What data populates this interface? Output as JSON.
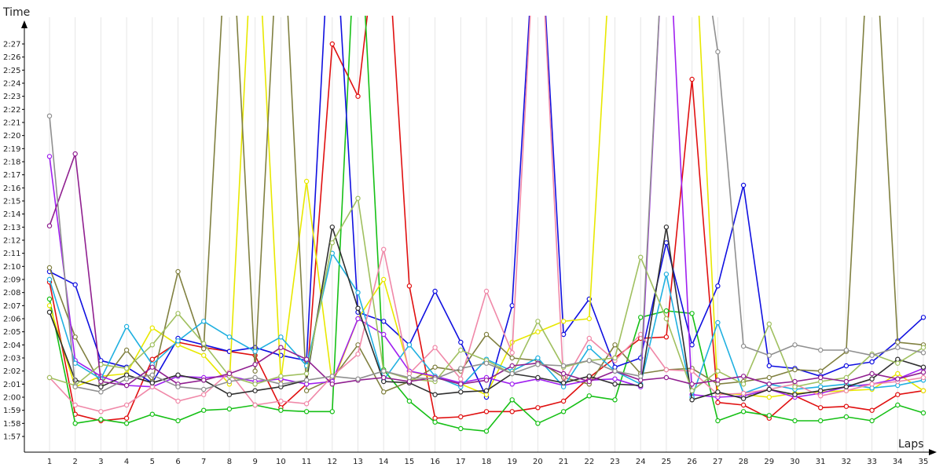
{
  "chart_data": {
    "type": "line",
    "xlabel": "Laps",
    "ylabel": "Time",
    "xlim": [
      1,
      35
    ],
    "ylim": [
      "1:57",
      "2:27"
    ],
    "x_ticks": [
      "1",
      "2",
      "3",
      "4",
      "5",
      "6",
      "7",
      "8",
      "9",
      "10",
      "11",
      "12",
      "13",
      "14",
      "15",
      "16",
      "17",
      "18",
      "19",
      "20",
      "21",
      "22",
      "23",
      "24",
      "25",
      "26",
      "27",
      "28",
      "29",
      "30",
      "31",
      "32",
      "33",
      "34",
      "35"
    ],
    "y_ticks": [
      "1:57",
      "1:58",
      "1:59",
      "2:00",
      "2:01",
      "2:02",
      "2:03",
      "2:04",
      "2:05",
      "2:06",
      "2:07",
      "2:08",
      "2:09",
      "2:10",
      "2:11",
      "2:12",
      "2:13",
      "2:14",
      "2:15",
      "2:16",
      "2:17",
      "2:18",
      "2:19",
      "2:20",
      "2:21",
      "2:22",
      "2:23",
      "2:24",
      "2:25",
      "2:26",
      "2:27"
    ],
    "grid": "vertical",
    "legend": "none",
    "series": [
      {
        "color": "#e01010",
        "values": [
          128.8,
          118.7,
          118.2,
          118.4,
          122.9,
          124.2,
          123.8,
          123.5,
          123.2,
          119.2,
          121.0,
          147.0,
          143.0,
          160.0,
          128.5,
          118.4,
          118.5,
          118.9,
          118.9,
          119.2,
          119.7,
          121.5,
          123.0,
          124.5,
          124.6,
          144.3,
          119.6,
          119.4,
          118.4,
          120.1,
          119.2,
          119.3,
          119.0,
          120.2,
          120.5
        ]
      },
      {
        "color": "#16c016",
        "values": [
          127.5,
          118.0,
          118.3,
          118.0,
          118.7,
          118.2,
          119.0,
          119.1,
          119.4,
          119.0,
          118.9,
          118.9,
          160.0,
          122.1,
          119.7,
          118.1,
          117.6,
          117.4,
          119.8,
          118.0,
          118.9,
          120.1,
          119.8,
          126.1,
          126.6,
          126.4,
          118.2,
          118.9,
          118.6,
          118.2,
          118.2,
          118.5,
          118.2,
          119.4,
          118.8
        ]
      },
      {
        "color": "#1010e0",
        "values": [
          129.6,
          128.6,
          122.8,
          122.3,
          121.1,
          124.5,
          124.0,
          123.5,
          123.8,
          123.2,
          122.8,
          160.0,
          126.5,
          125.8,
          124.0,
          128.1,
          124.2,
          120.0,
          127.0,
          160.0,
          124.8,
          127.5,
          122.3,
          123.0,
          131.8,
          124.0,
          128.5,
          136.2,
          122.4,
          122.2,
          121.6,
          122.4,
          122.7,
          124.3,
          126.1
        ]
      },
      {
        "color": "#e8e800",
        "values": [
          127.0,
          120.8,
          121.6,
          121.8,
          125.3,
          124.0,
          123.2,
          121.0,
          160.0,
          121.3,
          136.5,
          121.0,
          126.0,
          129.0,
          122.0,
          121.5,
          121.0,
          120.2,
          124.2,
          125.0,
          125.8,
          126.0,
          160.0,
          160.0,
          160.0,
          160.0,
          120.3,
          120.2,
          120.0,
          120.3,
          120.4,
          120.5,
          120.6,
          121.8,
          120.5
        ]
      },
      {
        "color": "#808040",
        "values": [
          129.9,
          124.6,
          121.0,
          123.6,
          121.2,
          129.6,
          123.7,
          160.0,
          122.0,
          160.0,
          120.5,
          121.4,
          124.0,
          120.4,
          121.2,
          122.3,
          122.0,
          124.8,
          123.0,
          122.8,
          121.5,
          121.0,
          124.0,
          121.8,
          122.1,
          122.2,
          121.0,
          121.2,
          121.5,
          122.1,
          122.0,
          123.5,
          160.0,
          124.2,
          124.0
        ]
      },
      {
        "color": "#a020f0",
        "values": [
          138.4,
          122.8,
          121.6,
          120.9,
          120.8,
          121.6,
          121.5,
          121.6,
          121.2,
          121.4,
          121.0,
          121.2,
          126.0,
          124.8,
          122.0,
          121.6,
          121.1,
          121.5,
          121.0,
          121.4,
          120.9,
          121.3,
          121.4,
          120.8,
          160.0,
          120.2,
          120.0,
          120.1,
          120.6,
          120.0,
          120.3,
          120.8,
          121.0,
          121.4,
          122.2
        ]
      },
      {
        "color": "#20b0e0",
        "values": [
          129.0,
          122.6,
          121.4,
          125.4,
          122.5,
          124.3,
          125.8,
          124.6,
          123.5,
          124.6,
          122.4,
          131.0,
          128.0,
          121.3,
          124.0,
          121.6,
          120.8,
          122.9,
          122.0,
          123.0,
          120.8,
          123.8,
          122.0,
          121.0,
          129.4,
          120.0,
          125.7,
          120.3,
          121.0,
          120.6,
          120.8,
          121.0,
          120.7,
          120.9,
          121.3
        ]
      },
      {
        "color": "#f088a8",
        "values": [
          121.5,
          119.4,
          118.9,
          119.4,
          120.8,
          119.7,
          120.2,
          121.9,
          119.4,
          119.7,
          119.5,
          121.6,
          123.3,
          131.3,
          121.8,
          123.8,
          121.4,
          128.1,
          123.4,
          160.0,
          121.1,
          124.5,
          122.8,
          124.8,
          122.1,
          122.0,
          120.2,
          120.3,
          120.6,
          121.0,
          120.1,
          120.5,
          121.0,
          121.2,
          121.5
        ]
      },
      {
        "color": "#303030",
        "values": [
          126.5,
          121.3,
          120.8,
          121.7,
          121.1,
          121.7,
          121.3,
          120.2,
          120.5,
          120.8,
          121.3,
          133.0,
          126.8,
          121.2,
          121.1,
          120.2,
          120.4,
          120.5,
          121.8,
          121.5,
          121.1,
          121.6,
          121.0,
          120.9,
          133.0,
          119.8,
          120.4,
          119.9,
          120.6,
          120.2,
          120.5,
          120.8,
          121.4,
          122.9,
          122.3
        ]
      },
      {
        "color": "#a0c060",
        "values": [
          121.5,
          120.9,
          122.5,
          122.2,
          124.0,
          126.4,
          124.1,
          121.6,
          121.0,
          121.6,
          121.8,
          131.8,
          135.2,
          122.0,
          121.4,
          121.2,
          123.6,
          122.8,
          121.8,
          125.8,
          122.3,
          122.8,
          123.0,
          130.7,
          126.0,
          120.5,
          122.0,
          121.0,
          125.6,
          120.8,
          121.2,
          121.5,
          123.3,
          122.6,
          123.8
        ]
      },
      {
        "color": "#902090",
        "values": [
          133.1,
          138.6,
          121.2,
          120.9,
          122.3,
          121.0,
          121.3,
          121.8,
          122.5,
          123.8,
          122.9,
          121.0,
          121.3,
          121.5,
          121.2,
          121.5,
          121.0,
          121.3,
          122.4,
          122.6,
          121.8,
          121.2,
          122.0,
          121.3,
          121.5,
          121.0,
          121.3,
          121.6,
          121.0,
          121.2,
          121.5,
          121.2,
          121.8,
          121.4,
          121.9
        ]
      },
      {
        "color": "#909090",
        "values": [
          141.5,
          120.8,
          120.4,
          121.4,
          121.7,
          120.8,
          120.6,
          121.2,
          121.5,
          121.0,
          121.3,
          121.6,
          121.4,
          122.0,
          121.5,
          121.4,
          122.2,
          122.6,
          121.8,
          122.5,
          122.4,
          122.8,
          122.0,
          121.6,
          160.0,
          160.0,
          146.4,
          123.9,
          123.2,
          124.0,
          123.6,
          123.6,
          123.2,
          123.8,
          123.4
        ]
      }
    ]
  }
}
